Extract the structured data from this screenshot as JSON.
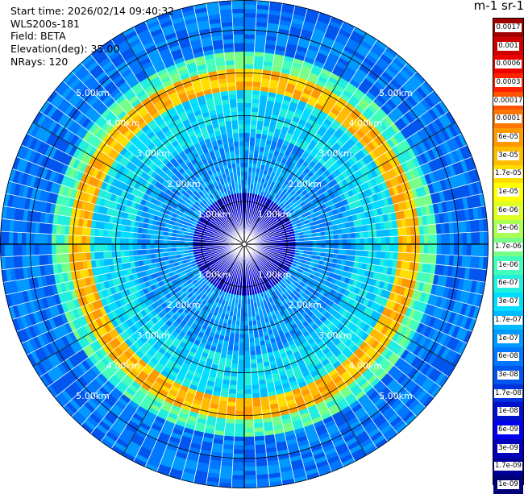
{
  "info": {
    "start_time": "Start time: 2026/02/14 09:40:32",
    "instrument": "WLS200s-181",
    "field": "Field: BETA",
    "elevation": "Elevation(deg): 35.00",
    "nrays": "NRays: 120"
  },
  "units_label": "m-1 sr-1",
  "chart_data": {
    "type": "heatmap",
    "projection": "polar",
    "range_rings_km": [
      1,
      2,
      3,
      4,
      5
    ],
    "ring_labels": [
      "1.00km",
      "2.00km",
      "3.00km",
      "4.00km",
      "5.00km"
    ],
    "max_range_km": 5.7,
    "n_rays": 120,
    "colorbar": {
      "ticks": [
        "0.0017",
        "0.001",
        "0.0006",
        "0.0003",
        "0.00017",
        "0.0001",
        "6e-05",
        "3e-05",
        "1.7e-05",
        "1e-05",
        "6e-06",
        "3e-06",
        "1.7e-06",
        "1e-06",
        "6e-07",
        "3e-07",
        "1.7e-07",
        "1e-07",
        "6e-08",
        "3e-08",
        "1.7e-08",
        "1e-08",
        "6e-09",
        "3e-09",
        "1.7e-09",
        "1e-09"
      ],
      "colors": [
        "#a00000",
        "#cc0000",
        "#ee0000",
        "#ff2200",
        "#ff5500",
        "#ff7700",
        "#ff9900",
        "#ffbb00",
        "#ffdd00",
        "#ffff00",
        "#ddff22",
        "#aaff55",
        "#77ff88",
        "#44ffbb",
        "#22eedd",
        "#00ddff",
        "#00bbff",
        "#0099ff",
        "#0077ff",
        "#0055ee",
        "#0033dd",
        "#0011cc",
        "#0000ee",
        "#0000bb",
        "#000099",
        "#000077"
      ]
    },
    "profile_bands": [
      {
        "from_km": 0.0,
        "to_km": 1.25,
        "level_index": 23
      },
      {
        "from_km": 1.25,
        "to_km": 2.6,
        "level_index": 17
      },
      {
        "from_km": 2.6,
        "to_km": 3.6,
        "level_index": 15
      },
      {
        "from_km": 3.6,
        "to_km": 4.1,
        "level_index": 7
      },
      {
        "from_km": 4.1,
        "to_km": 4.5,
        "level_index": 13
      },
      {
        "from_km": 4.5,
        "to_km": 5.7,
        "level_index": 18
      }
    ]
  }
}
